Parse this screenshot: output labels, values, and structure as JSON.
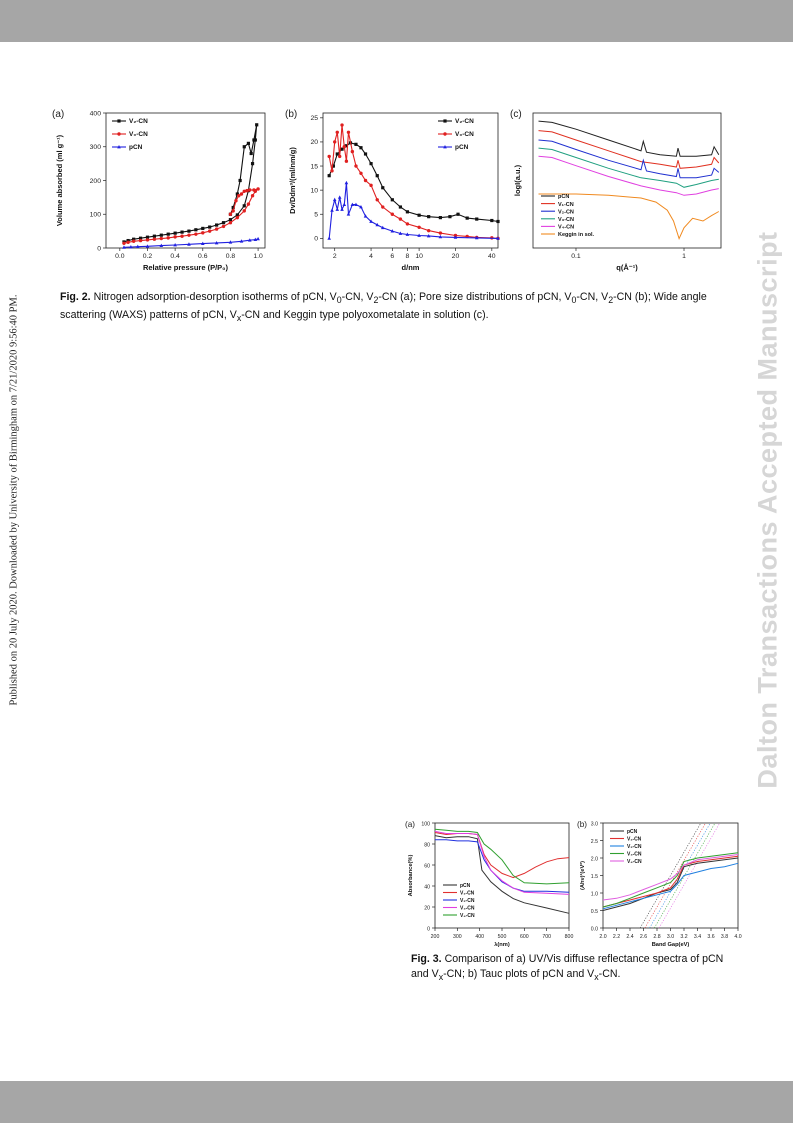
{
  "side_note": "Published on 20 July 2020. Downloaded by University of Birmingham on 7/21/2020 9:56:40 PM.",
  "watermark": "Dalton Transactions Accepted Manuscript",
  "fig2": {
    "caption_label": "Fig. 2.",
    "caption_html": "Nitrogen adsorption-desorption isotherms of pCN, V<sub>0</sub>-CN, V<sub>2</sub>-CN (a); Pore size distributions of pCN, V<sub>0</sub>-CN, V<sub>2</sub>-CN (b); Wide angle scattering (WAXS) patterns of pCN, V<sub>x</sub>-CN and Keggin type polyoxometalate in solution (c)."
  },
  "fig3": {
    "caption_label": "Fig. 3.",
    "caption_html": "Comparison of a) UV/Vis diffuse reflectance spectra of pCN and V<sub>x</sub>-CN; b) Tauc plots of pCN and V<sub>x</sub>-CN."
  },
  "chart_data": [
    {
      "panel": "(a)",
      "type": "line",
      "xlabel": "Relative pressure (P/P₀)",
      "ylabel": "Volume absorbed (ml g⁻¹)",
      "xlim": [
        -0.1,
        1.05
      ],
      "ylim": [
        0,
        400
      ],
      "xticks": [
        0.0,
        0.2,
        0.4,
        0.6,
        0.8,
        1.0
      ],
      "yticks": [
        0,
        100,
        200,
        300,
        400
      ],
      "legend": "top-left",
      "series": [
        {
          "name": "V₂-CN",
          "color": "#111111",
          "marker": "square",
          "x": [
            0.03,
            0.06,
            0.1,
            0.15,
            0.2,
            0.25,
            0.3,
            0.35,
            0.4,
            0.45,
            0.5,
            0.55,
            0.6,
            0.65,
            0.7,
            0.75,
            0.8,
            0.85,
            0.9,
            0.93,
            0.96,
            0.98,
            0.99,
            0.97,
            0.95,
            0.93,
            0.9,
            0.87,
            0.85,
            0.82,
            0.8
          ],
          "y": [
            18,
            22,
            26,
            29,
            32,
            35,
            38,
            41,
            44,
            47,
            50,
            54,
            58,
            62,
            68,
            75,
            84,
            98,
            125,
            170,
            250,
            320,
            365,
            320,
            280,
            310,
            300,
            200,
            160,
            120,
            100
          ]
        },
        {
          "name": "V₀-CN",
          "color": "#e02020",
          "marker": "circle",
          "x": [
            0.03,
            0.06,
            0.1,
            0.15,
            0.2,
            0.25,
            0.3,
            0.35,
            0.4,
            0.45,
            0.5,
            0.55,
            0.6,
            0.65,
            0.7,
            0.75,
            0.8,
            0.85,
            0.9,
            0.93,
            0.96,
            0.98,
            1.0,
            0.97,
            0.94,
            0.92,
            0.9,
            0.88,
            0.86,
            0.84,
            0.82,
            0.8
          ],
          "y": [
            14,
            17,
            20,
            22,
            24,
            26,
            28,
            30,
            33,
            35,
            38,
            41,
            45,
            50,
            56,
            64,
            75,
            90,
            110,
            130,
            155,
            168,
            175,
            172,
            172,
            170,
            168,
            160,
            155,
            140,
            110,
            100
          ]
        },
        {
          "name": "pCN",
          "color": "#2020e0",
          "marker": "triangle",
          "x": [
            0.03,
            0.08,
            0.13,
            0.2,
            0.3,
            0.4,
            0.5,
            0.6,
            0.7,
            0.8,
            0.88,
            0.94,
            0.98,
            1.0
          ],
          "y": [
            2,
            3,
            4,
            5,
            7,
            9,
            11,
            13,
            15,
            17,
            20,
            23,
            25,
            27
          ]
        }
      ]
    },
    {
      "panel": "(b)",
      "type": "line",
      "xlabel": "d/nm",
      "ylabel": "Dv/Ddm³/(ml/nm/g)",
      "xscale": "log",
      "xlim": [
        1.6,
        45
      ],
      "ylim": [
        -2,
        26
      ],
      "xticks": [
        2,
        4,
        6,
        8,
        10,
        20,
        40
      ],
      "yticks": [
        0,
        5,
        10,
        15,
        20,
        25
      ],
      "legend": "top-right",
      "series": [
        {
          "name": "V₂-CN",
          "color": "#111111",
          "marker": "square",
          "x": [
            1.8,
            1.95,
            2.1,
            2.3,
            2.5,
            2.7,
            3.0,
            3.3,
            3.6,
            4,
            4.5,
            5,
            6,
            7,
            8,
            10,
            12,
            15,
            18,
            21,
            25,
            30,
            40,
            45
          ],
          "y": [
            13,
            15,
            17.5,
            18.5,
            19.2,
            19.8,
            19.5,
            18.8,
            17.5,
            15.5,
            13,
            10.5,
            8,
            6.5,
            5.5,
            4.8,
            4.5,
            4.3,
            4.5,
            5,
            4.2,
            4,
            3.7,
            3.5
          ]
        },
        {
          "name": "V₀-CN",
          "color": "#e02020",
          "marker": "circle",
          "x": [
            1.8,
            1.9,
            2.0,
            2.1,
            2.2,
            2.3,
            2.4,
            2.5,
            2.6,
            2.8,
            3.0,
            3.3,
            3.6,
            4,
            4.5,
            5,
            6,
            7,
            8,
            10,
            12,
            15,
            20,
            25,
            30,
            40,
            45
          ],
          "y": [
            17,
            14,
            20,
            22,
            17,
            23.5,
            19,
            16,
            22,
            18,
            15,
            13.5,
            12,
            11,
            8,
            6.5,
            5,
            4,
            3,
            2.3,
            1.6,
            1.1,
            0.6,
            0.4,
            0.2,
            0.1,
            0
          ]
        },
        {
          "name": "pCN",
          "color": "#2020e0",
          "marker": "triangle",
          "x": [
            1.8,
            1.9,
            2.0,
            2.1,
            2.2,
            2.3,
            2.4,
            2.5,
            2.6,
            2.8,
            3.0,
            3.3,
            3.6,
            4,
            4.5,
            5,
            6,
            7,
            8,
            10,
            12,
            15,
            20,
            30,
            45
          ],
          "y": [
            0,
            5.8,
            8,
            6,
            8.5,
            6,
            7,
            11.5,
            5,
            7,
            7,
            6.5,
            4.6,
            3.5,
            2.8,
            2.2,
            1.5,
            1.0,
            0.8,
            0.6,
            0.5,
            0.3,
            0.2,
            0.1,
            0
          ]
        }
      ]
    },
    {
      "panel": "(c)",
      "type": "line",
      "xlabel": "q(Å⁻¹)",
      "ylabel": "logI(a.u.)",
      "xscale": "log",
      "xlim": [
        0.04,
        2.2
      ],
      "ylim": [
        0,
        10
      ],
      "xticks": [
        0.1,
        1
      ],
      "yticks": [],
      "legend": "bottom-left",
      "series": [
        {
          "name": "pCN",
          "color": "#222222",
          "x": [
            0.045,
            0.06,
            0.1,
            0.2,
            0.4,
            0.42,
            0.45,
            0.6,
            0.85,
            0.88,
            0.92,
            1.3,
            1.8,
            1.9,
            2.1
          ],
          "y": [
            9.4,
            9.3,
            8.8,
            8.0,
            7.2,
            7.9,
            7.1,
            6.9,
            6.8,
            7.4,
            6.8,
            6.8,
            6.9,
            7.5,
            6.9
          ]
        },
        {
          "name": "V₁-CN",
          "color": "#e03020",
          "x": [
            0.045,
            0.06,
            0.1,
            0.2,
            0.4,
            0.6,
            0.85,
            0.88,
            0.92,
            1.3,
            1.8,
            1.9,
            2.1
          ],
          "y": [
            8.7,
            8.6,
            8.0,
            7.2,
            6.4,
            6.2,
            6.0,
            6.5,
            5.9,
            6.0,
            6.2,
            6.7,
            6.3
          ]
        },
        {
          "name": "V₂-CN",
          "color": "#2030d0",
          "x": [
            0.045,
            0.06,
            0.1,
            0.2,
            0.4,
            0.42,
            0.45,
            0.6,
            0.85,
            0.88,
            0.92,
            1.3,
            1.8,
            1.9,
            2.1
          ],
          "y": [
            8.0,
            7.9,
            7.3,
            6.5,
            5.8,
            6.5,
            5.7,
            5.5,
            5.3,
            5.9,
            5.2,
            5.2,
            5.4,
            5.9,
            5.6
          ]
        },
        {
          "name": "V₃-CN",
          "color": "#20a080",
          "x": [
            0.045,
            0.06,
            0.1,
            0.2,
            0.4,
            0.6,
            0.85,
            1.0,
            1.3,
            1.8,
            2.1
          ],
          "y": [
            7.4,
            7.3,
            6.7,
            5.9,
            5.2,
            5.0,
            4.8,
            4.5,
            4.7,
            5.0,
            5.1
          ]
        },
        {
          "name": "V₄-CN",
          "color": "#e040e0",
          "x": [
            0.045,
            0.06,
            0.1,
            0.2,
            0.4,
            0.6,
            0.85,
            1.0,
            1.3,
            1.8,
            2.1
          ],
          "y": [
            6.8,
            6.7,
            6.1,
            5.3,
            4.6,
            4.3,
            4.1,
            3.9,
            4.0,
            4.3,
            4.4
          ]
        },
        {
          "name": "Keggin in sol.",
          "color": "#f08a20",
          "x": [
            0.045,
            0.1,
            0.2,
            0.4,
            0.55,
            0.7,
            0.8,
            0.9,
            1.0,
            1.2,
            1.5,
            1.8,
            2.1
          ],
          "y": [
            4.0,
            4.0,
            3.9,
            3.7,
            3.4,
            2.8,
            2.0,
            0.7,
            1.5,
            2.2,
            2.0,
            2.4,
            2.7
          ]
        }
      ]
    },
    {
      "panel": "(a)",
      "type": "line",
      "xlabel": "λ(nm)",
      "ylabel": "Absorbance(%)",
      "xlim": [
        200,
        800
      ],
      "ylim": [
        0,
        100
      ],
      "xticks": [
        200,
        300,
        400,
        500,
        600,
        700,
        800
      ],
      "yticks": [
        0,
        20,
        40,
        60,
        80,
        100
      ],
      "legend": "bottom-left",
      "series": [
        {
          "name": "pCN",
          "color": "#333333",
          "x": [
            200,
            250,
            300,
            350,
            390,
            410,
            450,
            500,
            550,
            600,
            700,
            800
          ],
          "y": [
            88,
            86,
            87,
            87,
            85,
            55,
            44,
            35,
            28,
            24,
            19,
            14
          ]
        },
        {
          "name": "V₁-CN",
          "color": "#e03030",
          "x": [
            200,
            250,
            300,
            350,
            390,
            420,
            450,
            500,
            550,
            600,
            650,
            700,
            750,
            800
          ],
          "y": [
            91,
            89,
            90,
            90,
            89,
            70,
            60,
            52,
            48,
            52,
            58,
            63,
            66,
            67
          ]
        },
        {
          "name": "V₂-CN",
          "color": "#2030e0",
          "x": [
            200,
            250,
            300,
            350,
            390,
            420,
            450,
            500,
            550,
            600,
            700,
            800
          ],
          "y": [
            84,
            84,
            83,
            83,
            82,
            65,
            55,
            44,
            38,
            35,
            35,
            34
          ]
        },
        {
          "name": "V₃-CN",
          "color": "#e040e0",
          "x": [
            200,
            250,
            300,
            350,
            390,
            420,
            450,
            500,
            550,
            600,
            700,
            800
          ],
          "y": [
            92,
            90,
            90,
            90,
            89,
            68,
            55,
            45,
            38,
            34,
            33,
            32
          ]
        },
        {
          "name": "V₄-CN",
          "color": "#30a030",
          "x": [
            200,
            250,
            300,
            350,
            390,
            420,
            450,
            500,
            550,
            600,
            700,
            800
          ],
          "y": [
            94,
            93,
            92,
            92,
            91,
            80,
            75,
            65,
            50,
            43,
            42,
            43
          ]
        }
      ]
    },
    {
      "panel": "(b)",
      "type": "line",
      "xlabel": "Band Gap(eV)",
      "ylabel": "(Ahν)²(eV²)",
      "xlim": [
        2.0,
        4.0
      ],
      "ylim": [
        0,
        3.0
      ],
      "xticks": [
        2.0,
        2.2,
        2.4,
        2.6,
        2.8,
        3.0,
        3.2,
        3.4,
        3.6,
        3.8,
        4.0
      ],
      "yticks": [
        0,
        0.5,
        1.0,
        1.5,
        2.0,
        2.5,
        3.0
      ],
      "legend": "top-left",
      "series": [
        {
          "name": "pCN",
          "color": "#333333",
          "x": [
            2.0,
            2.2,
            2.4,
            2.6,
            2.8,
            3.0,
            3.1,
            3.2,
            3.4,
            3.6,
            3.8,
            4.0
          ],
          "y": [
            0.5,
            0.6,
            0.7,
            0.85,
            1.0,
            1.1,
            1.3,
            1.75,
            1.85,
            1.9,
            1.95,
            2.0
          ]
        },
        {
          "name": "V₁-CN",
          "color": "#e03030",
          "x": [
            2.0,
            2.2,
            2.4,
            2.6,
            2.8,
            3.0,
            3.1,
            3.2,
            3.4,
            3.6,
            3.8,
            4.0
          ],
          "y": [
            0.6,
            0.7,
            0.8,
            0.9,
            1.0,
            1.15,
            1.4,
            1.8,
            1.9,
            1.95,
            2.0,
            2.05
          ]
        },
        {
          "name": "V₂-CN",
          "color": "#2080e0",
          "x": [
            2.0,
            2.2,
            2.4,
            2.6,
            2.8,
            3.0,
            3.1,
            3.2,
            3.4,
            3.6,
            3.8,
            4.0
          ],
          "y": [
            0.55,
            0.65,
            0.75,
            0.85,
            0.95,
            1.05,
            1.25,
            1.5,
            1.6,
            1.7,
            1.75,
            1.85
          ]
        },
        {
          "name": "V₃-CN",
          "color": "#30a030",
          "x": [
            2.0,
            2.2,
            2.4,
            2.6,
            2.8,
            3.0,
            3.1,
            3.2,
            3.4,
            3.6,
            3.8,
            4.0
          ],
          "y": [
            0.6,
            0.7,
            0.85,
            1.0,
            1.15,
            1.3,
            1.5,
            1.9,
            2.0,
            2.05,
            2.1,
            2.15
          ]
        },
        {
          "name": "V₄-CN",
          "color": "#e060e0",
          "x": [
            2.0,
            2.2,
            2.4,
            2.6,
            2.8,
            3.0,
            3.1,
            3.2,
            3.4,
            3.6,
            3.8,
            4.0
          ],
          "y": [
            0.8,
            0.85,
            0.95,
            1.1,
            1.25,
            1.4,
            1.55,
            1.8,
            1.95,
            2.0,
            2.05,
            2.1
          ]
        }
      ]
    }
  ]
}
